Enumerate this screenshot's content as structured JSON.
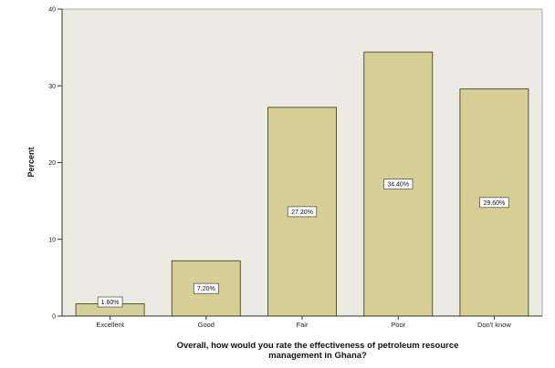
{
  "chart_data": {
    "type": "bar",
    "categories": [
      "Excellent",
      "Good",
      "Fair",
      "Poor",
      "Don't know"
    ],
    "values": [
      1.6,
      7.2,
      27.2,
      34.4,
      29.6
    ],
    "data_labels": [
      "1.60%",
      "7.20%",
      "27.20%",
      "34.40%",
      "29.60%"
    ],
    "ylabel": "Percent",
    "xlabel_lines": [
      "Overall, how would you rate the effectiveness of petroleum resource",
      "management in Ghana?"
    ],
    "ylim": [
      0,
      40
    ],
    "yticks": [
      0,
      10,
      20,
      30,
      40
    ],
    "grid": false,
    "colors": {
      "bar_fill": "#d6cf96",
      "bar_stroke": "#555533",
      "plot_bg": "#ecebe3",
      "axis": "#333333"
    }
  }
}
